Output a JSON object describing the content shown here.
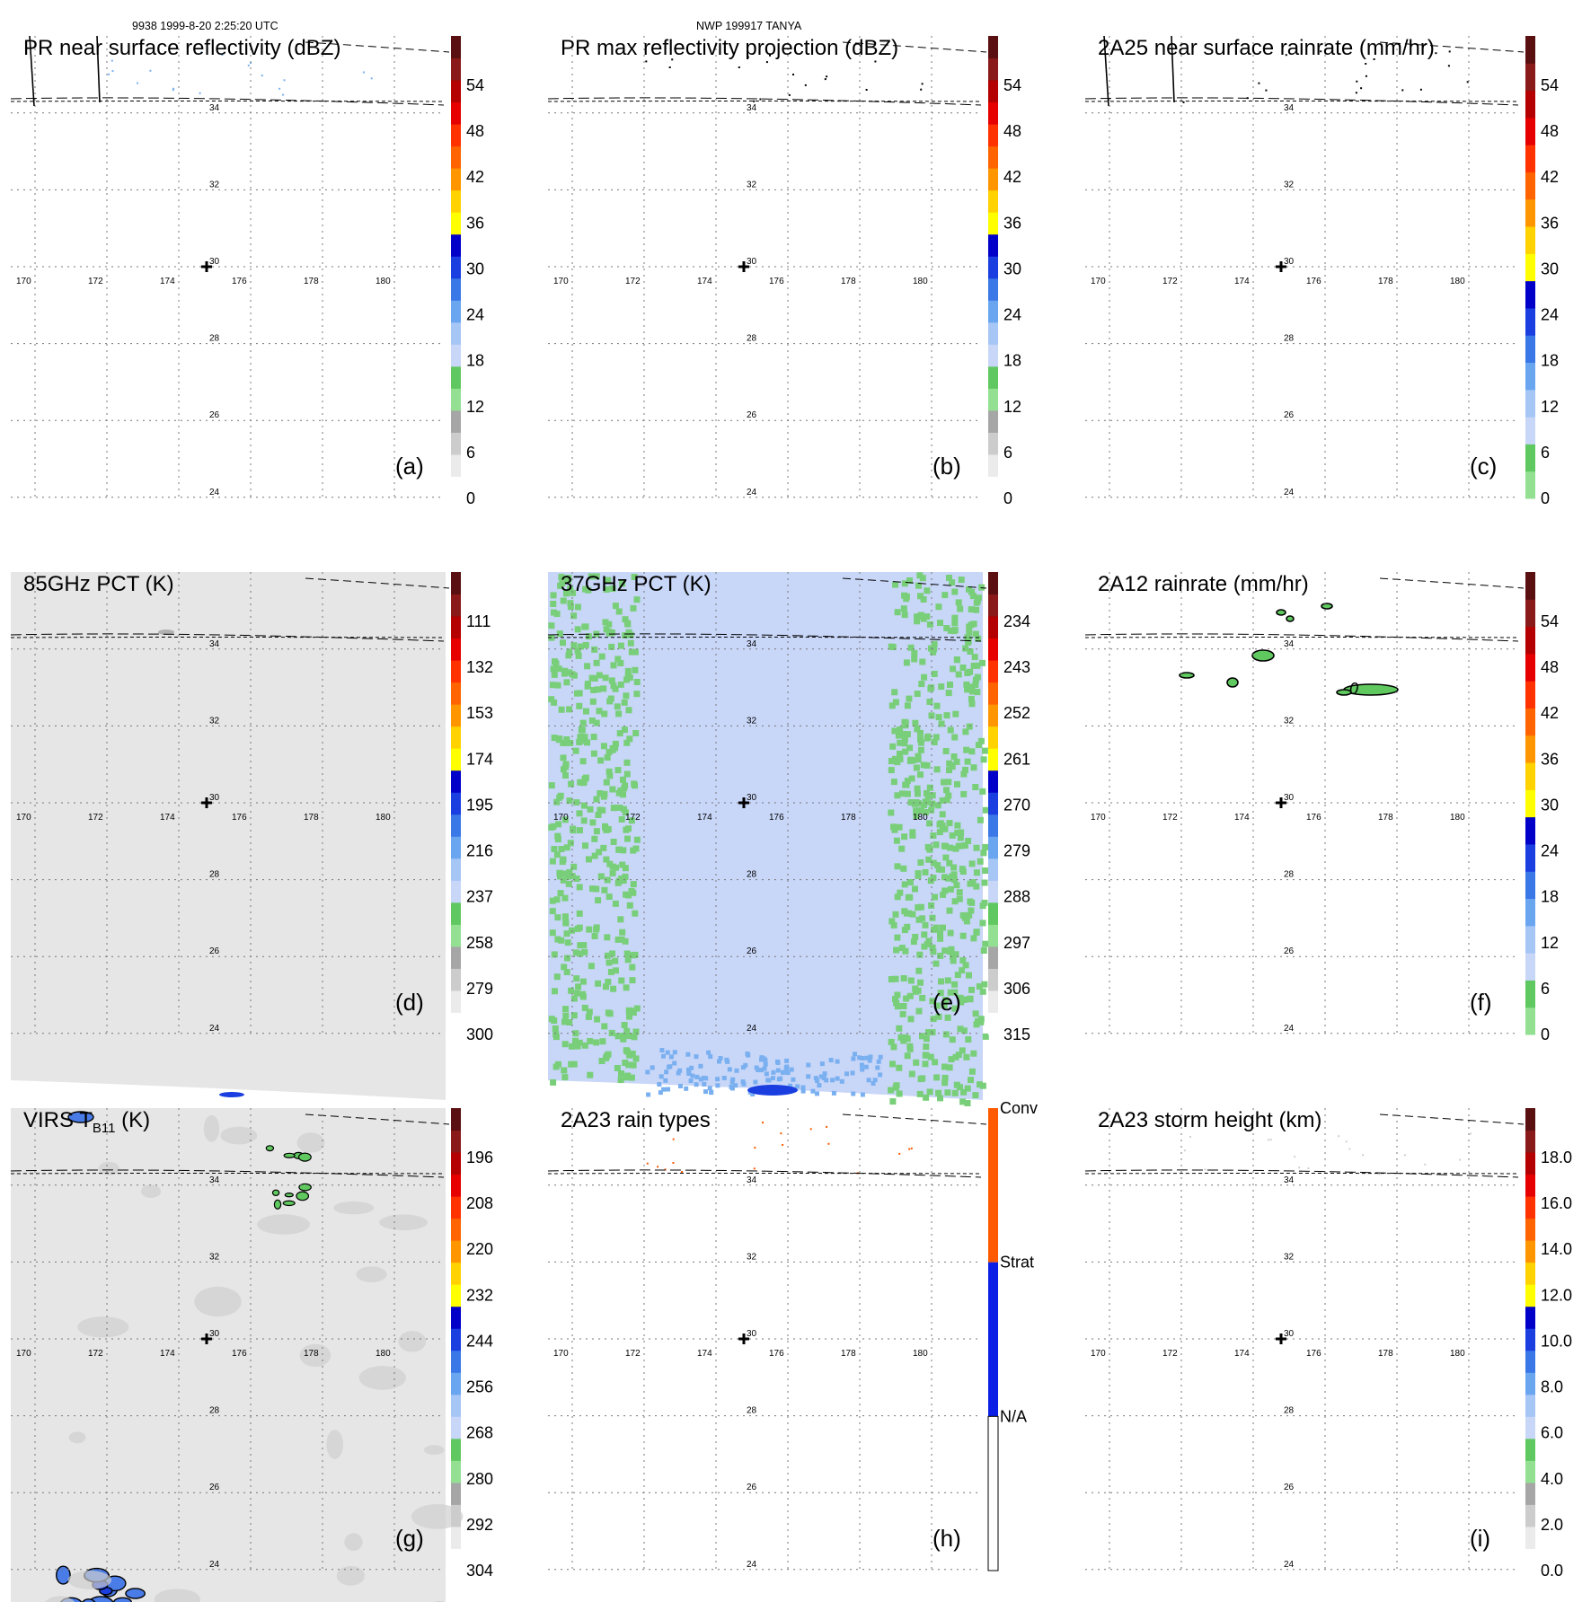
{
  "header": {
    "orbit_time": "9938 1999-8-20 2:25:20 UTC",
    "storm": "NWP 199917 TANYA"
  },
  "axes": {
    "lon_ticks": [
      "170",
      "172",
      "174",
      "176",
      "178",
      "180"
    ],
    "lat_ticks": [
      "34",
      "32",
      "30",
      "28",
      "26",
      "24"
    ],
    "storm_center": {
      "lon": 175.2,
      "lat": 30.0
    }
  },
  "chart_data": [
    {
      "type": "heatmap",
      "panel": "(a)",
      "title": "PR near surface reflectivity (dBZ)",
      "colorbar_ticks": [
        "54",
        "48",
        "42",
        "36",
        "30",
        "24",
        "18",
        "12",
        "6",
        "0"
      ],
      "swath": false,
      "colormap": "refl"
    },
    {
      "type": "heatmap",
      "panel": "(b)",
      "title": "PR max reflectivity projection (dBZ)",
      "colorbar_ticks": [
        "54",
        "48",
        "42",
        "36",
        "30",
        "24",
        "18",
        "12",
        "6",
        "0"
      ],
      "swath": false,
      "colormap": "refl"
    },
    {
      "type": "heatmap",
      "panel": "(c)",
      "title": "2A25 near surface rainrate (mm/hr)",
      "colorbar_ticks": [
        "54",
        "48",
        "42",
        "36",
        "30",
        "24",
        "18",
        "12",
        "6",
        "0"
      ],
      "swath": false,
      "colormap": "rain"
    },
    {
      "type": "heatmap",
      "panel": "(d)",
      "title": "85GHz PCT (K)",
      "colorbar_ticks": [
        "111",
        "132",
        "153",
        "174",
        "195",
        "216",
        "237",
        "258",
        "279",
        "300"
      ],
      "swath": true,
      "colormap": "refl"
    },
    {
      "type": "heatmap",
      "panel": "(e)",
      "title": "37GHz PCT (K)",
      "colorbar_ticks": [
        "234",
        "243",
        "252",
        "261",
        "270",
        "279",
        "288",
        "297",
        "306",
        "315"
      ],
      "swath": true,
      "colormap": "refl"
    },
    {
      "type": "heatmap",
      "panel": "(f)",
      "title": "2A12 rainrate (mm/hr)",
      "colorbar_ticks": [
        "54",
        "48",
        "42",
        "36",
        "30",
        "24",
        "18",
        "12",
        "6",
        "0"
      ],
      "swath": false,
      "colormap": "rain",
      "annotations": [
        "0"
      ]
    },
    {
      "type": "heatmap",
      "panel": "(g)",
      "title": "VIRS T",
      "title_sub": "B11",
      "title_unit": " (K)",
      "colorbar_ticks": [
        "196",
        "208",
        "220",
        "232",
        "244",
        "256",
        "268",
        "280",
        "292",
        "304"
      ],
      "swath": true,
      "colormap": "refl"
    },
    {
      "type": "heatmap",
      "panel": "(h)",
      "title": "2A23 rain types",
      "colorbar_ticks": [
        "Conv",
        "Strat",
        "N/A"
      ],
      "swath": false,
      "colormap": "types"
    },
    {
      "type": "heatmap",
      "panel": "(i)",
      "title": "2A23 storm height (km)",
      "colorbar_ticks": [
        "18.0",
        "16.0",
        "14.0",
        "12.0",
        "10.0",
        "8.0",
        "6.0",
        "4.0",
        "2.0",
        "0.0"
      ],
      "swath": false,
      "colormap": "refl"
    }
  ],
  "colors": {
    "refl": [
      "#ffffff",
      "#ebebeb",
      "#cccccc",
      "#a6a6a6",
      "#93e093",
      "#60c860",
      "#c8d6f8",
      "#a6c6f6",
      "#6aa6f0",
      "#3a78e8",
      "#1a3ee0",
      "#0000c8",
      "#ffff00",
      "#ffd200",
      "#ff9600",
      "#ff6400",
      "#ff3200",
      "#e60000",
      "#b40000",
      "#8a1a1a",
      "#5a1010"
    ],
    "rain": [
      "#93e093",
      "#60c860",
      "#c8d6f8",
      "#a6c6f6",
      "#6aa6f0",
      "#3a78e8",
      "#1a3ee0",
      "#0000c8",
      "#ffff00",
      "#ffd200",
      "#ff9600",
      "#ff6400",
      "#ff3200",
      "#e60000",
      "#b40000",
      "#8a1a1a",
      "#5a1010"
    ],
    "types": {
      "conv": "#ff5a00",
      "strat": "#0a1ee6",
      "na": "#ffffff"
    }
  }
}
